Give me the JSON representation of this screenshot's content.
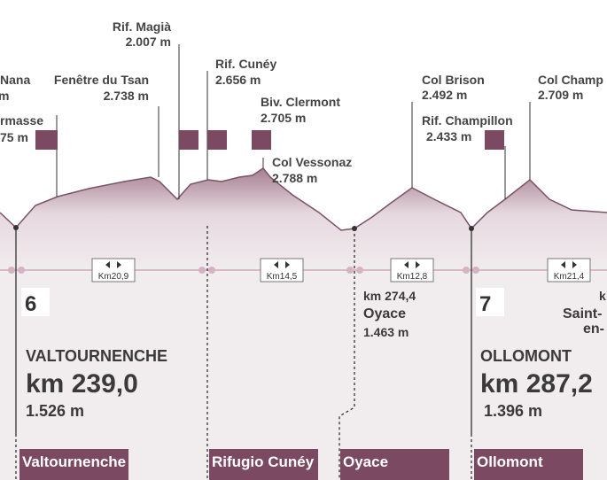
{
  "peaks": [
    {
      "name": "Nana",
      "elevation": "m"
    },
    {
      "name": "rmasse",
      "elevation": "75 m"
    },
    {
      "name": "Fenêtre du Tsan",
      "elevation": "2.738 m"
    },
    {
      "name": "Rif. Magià",
      "elevation": "2.007 m"
    },
    {
      "name": "Rif. Cunéy",
      "elevation": "2.656 m"
    },
    {
      "name": "Biv. Clermont",
      "elevation": "2.705 m"
    },
    {
      "name": "Col Vessonaz",
      "elevation": "2.788 m"
    },
    {
      "name": "Col Brison",
      "elevation": "2.492 m"
    },
    {
      "name": "Rif. Champillon",
      "elevation": "2.433 m"
    },
    {
      "name": "Col Champ",
      "elevation": "2.709 m"
    }
  ],
  "distances": [
    "Km20,9",
    "Km14,5",
    "Km12,8",
    "Km21,4"
  ],
  "stages": [
    {
      "number": "6",
      "name": "VALTOURNENCHE",
      "km": "km 239,0",
      "elevation": "1.526 m"
    },
    {
      "km": "km 274,4",
      "name": "Oyace",
      "elevation": "1.463 m"
    },
    {
      "number": "7",
      "name": "OLLOMONT",
      "km": "km 287,2",
      "elevation": "1.396 m"
    },
    {
      "km": "k",
      "name": "Saint-",
      "name2": "en-"
    }
  ],
  "tabs": [
    "Valtournenche",
    "Rifugio Cunéy",
    "Oyace",
    "Ollomont"
  ]
}
